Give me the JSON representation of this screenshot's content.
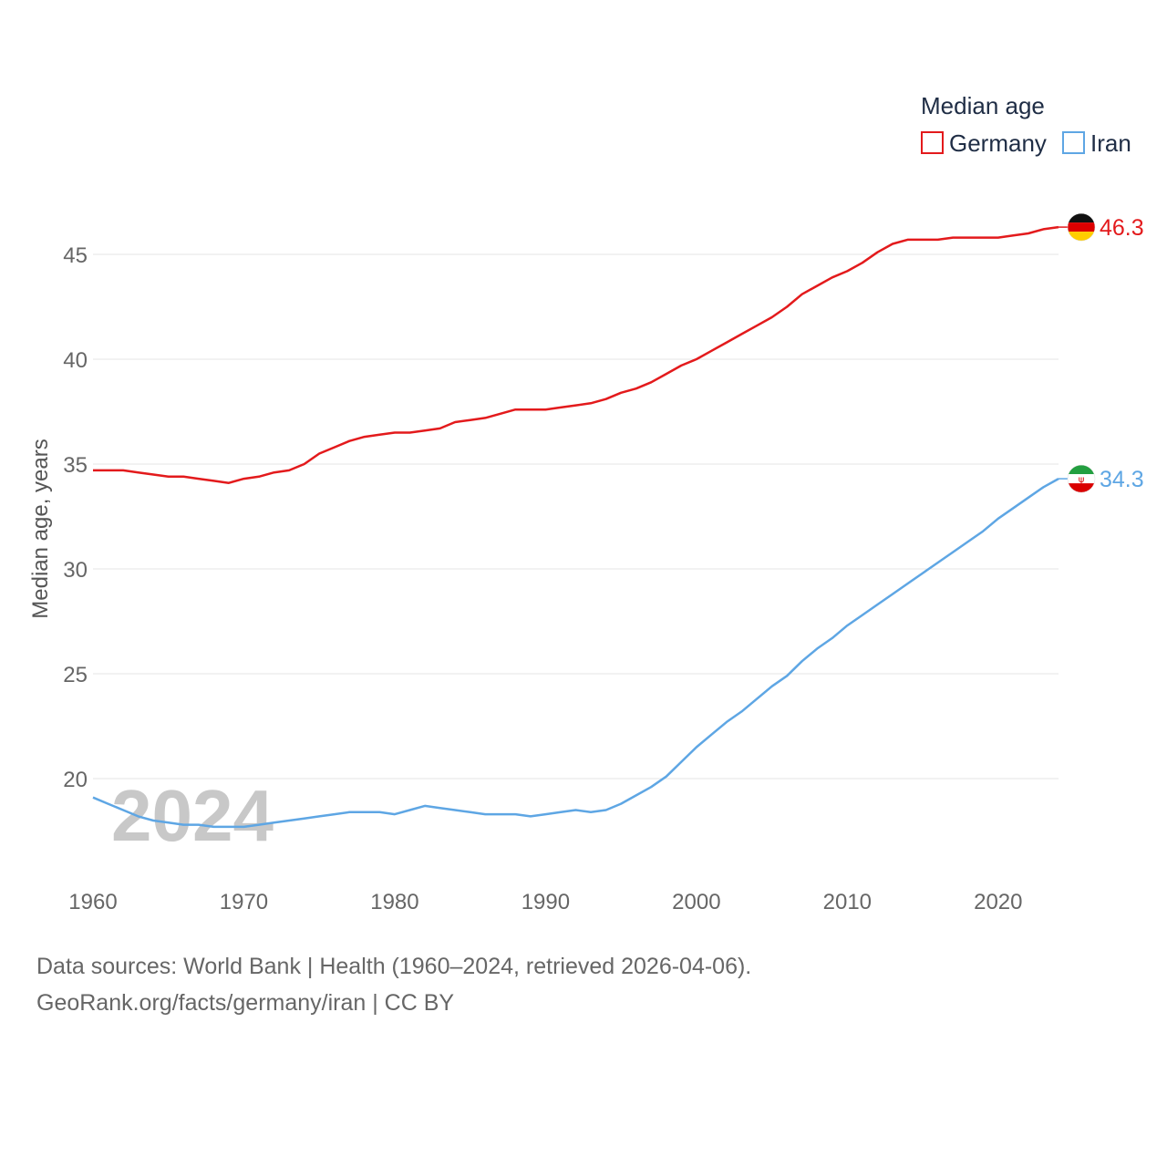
{
  "chart_data": {
    "type": "line",
    "legend_title": "Median age",
    "ylabel": "Median age, years",
    "xlim": [
      1960,
      2024
    ],
    "ylim": [
      16,
      47
    ],
    "yticks": [
      20,
      25,
      30,
      35,
      40,
      45
    ],
    "xticks": [
      1960,
      1970,
      1980,
      1990,
      2000,
      2010,
      2020
    ],
    "grid": true,
    "legend_position": "top-right",
    "current_year_label": "2024",
    "x": [
      1960,
      1961,
      1962,
      1963,
      1964,
      1965,
      1966,
      1967,
      1968,
      1969,
      1970,
      1971,
      1972,
      1973,
      1974,
      1975,
      1976,
      1977,
      1978,
      1979,
      1980,
      1981,
      1982,
      1983,
      1984,
      1985,
      1986,
      1987,
      1988,
      1989,
      1990,
      1991,
      1992,
      1993,
      1994,
      1995,
      1996,
      1997,
      1998,
      1999,
      2000,
      2001,
      2002,
      2003,
      2004,
      2005,
      2006,
      2007,
      2008,
      2009,
      2010,
      2011,
      2012,
      2013,
      2014,
      2015,
      2016,
      2017,
      2018,
      2019,
      2020,
      2021,
      2022,
      2023,
      2024
    ],
    "series": [
      {
        "name": "Germany",
        "color": "#e31a1c",
        "end_label": "46.3",
        "flag": "germany-flag",
        "values": [
          34.7,
          34.7,
          34.7,
          34.6,
          34.5,
          34.4,
          34.4,
          34.3,
          34.2,
          34.1,
          34.3,
          34.4,
          34.6,
          34.7,
          35.0,
          35.5,
          35.8,
          36.1,
          36.3,
          36.4,
          36.5,
          36.5,
          36.6,
          36.7,
          37.0,
          37.1,
          37.2,
          37.4,
          37.6,
          37.6,
          37.6,
          37.7,
          37.8,
          37.9,
          38.1,
          38.4,
          38.6,
          38.9,
          39.3,
          39.7,
          40.0,
          40.4,
          40.8,
          41.2,
          41.6,
          42.0,
          42.5,
          43.1,
          43.5,
          43.9,
          44.2,
          44.6,
          45.1,
          45.5,
          45.7,
          45.7,
          45.7,
          45.8,
          45.8,
          45.8,
          45.8,
          45.9,
          46.0,
          46.2,
          46.3
        ]
      },
      {
        "name": "Iran",
        "color": "#5ea6e4",
        "end_label": "34.3",
        "flag": "iran-flag",
        "values": [
          19.1,
          18.8,
          18.5,
          18.2,
          18.0,
          17.9,
          17.8,
          17.8,
          17.7,
          17.7,
          17.7,
          17.8,
          17.9,
          18.0,
          18.1,
          18.2,
          18.3,
          18.4,
          18.4,
          18.4,
          18.3,
          18.5,
          18.7,
          18.6,
          18.5,
          18.4,
          18.3,
          18.3,
          18.3,
          18.2,
          18.3,
          18.4,
          18.5,
          18.4,
          18.5,
          18.8,
          19.2,
          19.6,
          20.1,
          20.8,
          21.5,
          22.1,
          22.7,
          23.2,
          23.8,
          24.4,
          24.9,
          25.6,
          26.2,
          26.7,
          27.3,
          27.8,
          28.3,
          28.8,
          29.3,
          29.8,
          30.3,
          30.8,
          31.3,
          31.8,
          32.4,
          32.9,
          33.4,
          33.9,
          34.3
        ]
      }
    ]
  },
  "footer": {
    "sources": "Data sources: World Bank | Health (1960–2024, retrieved 2026-04-06).",
    "credit": "GeoRank.org/facts/germany/iran | CC BY"
  }
}
